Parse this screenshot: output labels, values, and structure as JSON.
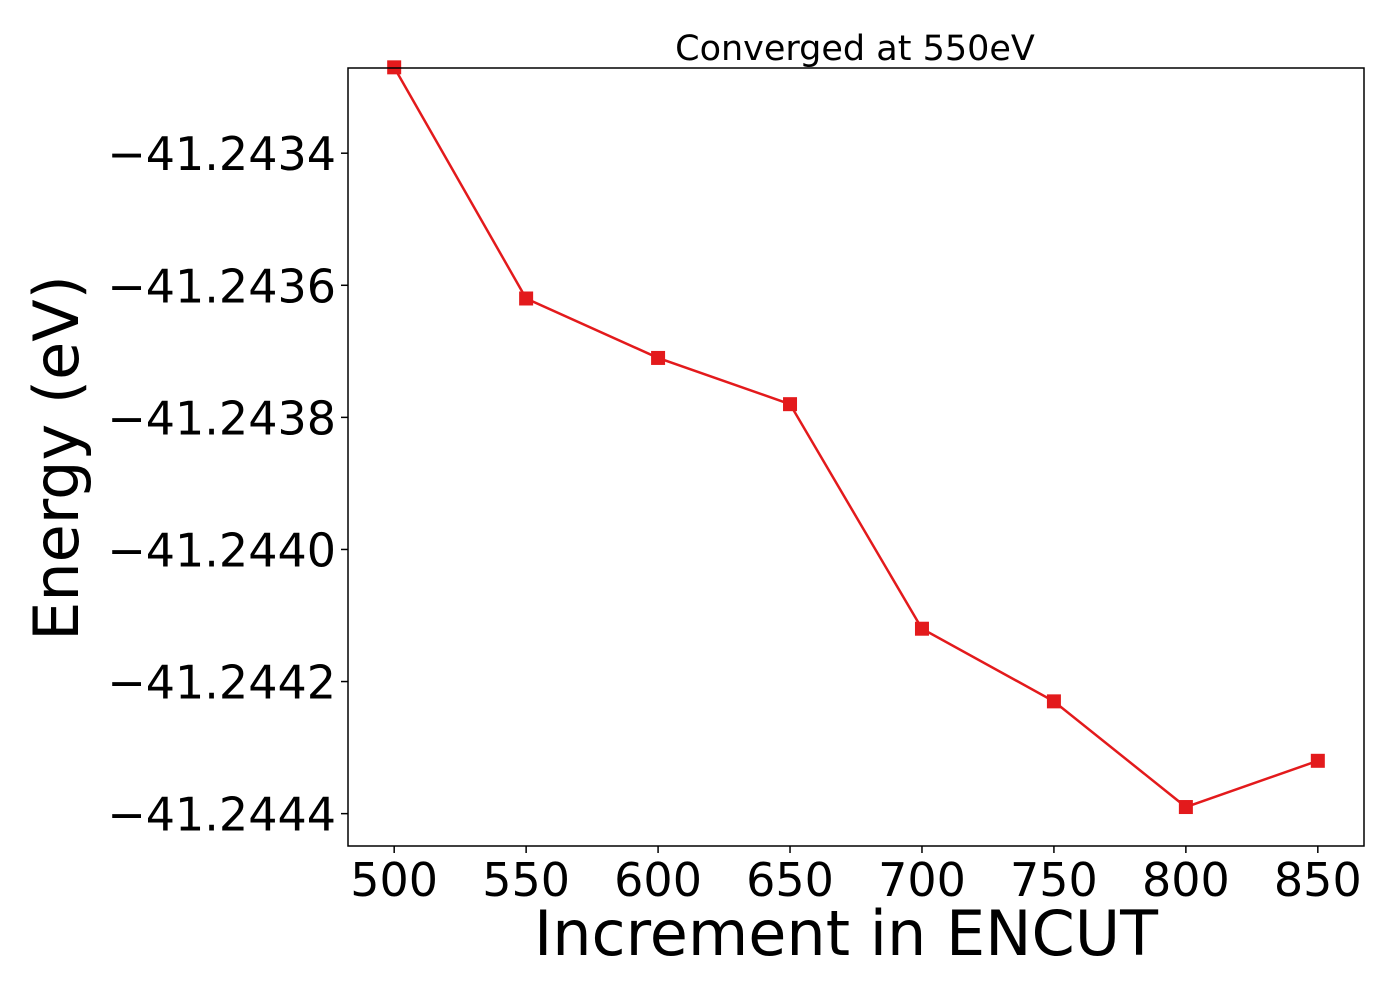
{
  "chart_data": {
    "type": "line",
    "title": "Converged at 550eV",
    "xlabel": "Increment in ENCUT",
    "ylabel": "Energy (eV)",
    "x": [
      500,
      550,
      600,
      650,
      700,
      750,
      800,
      850
    ],
    "series": [
      {
        "values": [
          -41.24327,
          -41.24362,
          -41.24371,
          -41.24378,
          -41.24412,
          -41.24423,
          -41.24439,
          -41.24432
        ],
        "color": "#e31a1c",
        "marker": "square"
      }
    ],
    "xticks": [
      500,
      550,
      600,
      650,
      700,
      750,
      800,
      850
    ],
    "xtick_labels": [
      "500",
      "550",
      "600",
      "650",
      "700",
      "750",
      "800",
      "850"
    ],
    "yticks": [
      -41.2434,
      -41.2436,
      -41.2438,
      -41.244,
      -41.2442,
      -41.2444
    ],
    "ytick_labels": [
      "−41.2434",
      "−41.2436",
      "−41.2438",
      "−41.2440",
      "−41.2442",
      "−41.2444"
    ],
    "xlim": [
      482.5,
      867.5
    ],
    "ylim": [
      -41.244449,
      -41.243271
    ],
    "grid": false,
    "legend": false
  }
}
